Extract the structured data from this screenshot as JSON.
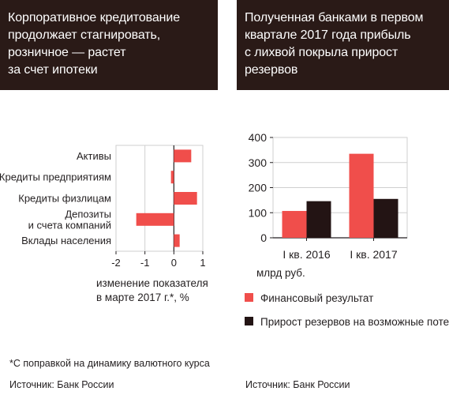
{
  "panels": {
    "left": {
      "title_lines": [
        "Корпоративное кредитование",
        "продолжает стагнировать,",
        "розничное — растет",
        "за счет ипотеки"
      ],
      "xlabel_lines": [
        "изменение показателя",
        "в марте 2017 г.*, %"
      ],
      "footnote": "*С поправкой на динамику валютного курса",
      "source": "Источник: Банк России"
    },
    "right": {
      "title_lines": [
        "Полученная банками в первом",
        "квартале 2017 года прибыль",
        "с лихвой покрыла прирост",
        "резервов"
      ],
      "unit": "млрд руб.",
      "source": "Источник: Банк России"
    }
  },
  "colors": {
    "header_bg": "#2a1a17",
    "series_red": "#f04e4b",
    "series_dark": "#231414",
    "axis": "#231f20"
  },
  "chart_data": [
    {
      "type": "bar",
      "orientation": "horizontal",
      "categories": [
        "Активы",
        "Кредиты предприятиям",
        "Кредиты физлицам",
        "Депозиты и счета компаний",
        "Вклады населения"
      ],
      "category_label_lines": [
        [
          "Активы"
        ],
        [
          "Кредиты предприятиям"
        ],
        [
          "Кредиты физлицам"
        ],
        [
          "Депозиты",
          "и счета компаний"
        ],
        [
          "Вклады населения"
        ]
      ],
      "values": [
        0.6,
        -0.1,
        0.8,
        -1.3,
        0.2
      ],
      "xlabel": "изменение показателя в марте 2017 г.*, %",
      "xlim": [
        -2,
        1
      ],
      "xticks": [
        -2,
        -1,
        0,
        1
      ],
      "grid": true
    },
    {
      "type": "bar",
      "categories": [
        "I кв. 2016",
        "I кв. 2017"
      ],
      "series": [
        {
          "name": "Финансовый результат",
          "values": [
            107,
            335
          ]
        },
        {
          "name": "Прирост резервов на возможные потери",
          "values": [
            146,
            155
          ]
        }
      ],
      "ylabel": "млрд руб.",
      "ylim": [
        0,
        400
      ],
      "yticks": [
        0,
        100,
        200,
        300,
        400
      ],
      "legend": "bottom",
      "grid": true
    }
  ]
}
